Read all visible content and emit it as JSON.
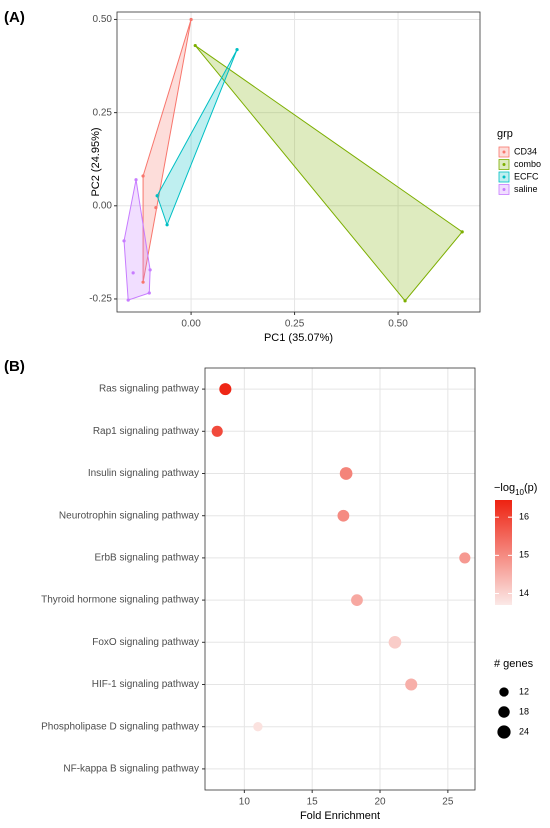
{
  "chart_data": [
    {
      "type": "scatter",
      "panel_label": "(A)",
      "xlabel": "PC1 (35.07%)",
      "ylabel": "PC2 (24.95%)",
      "xlim": [
        -0.179,
        0.698
      ],
      "ylim": [
        -0.285,
        0.52
      ],
      "xticks": [
        {
          "value": 0,
          "label": "0.00"
        },
        0.25,
        {
          "value": 0.5,
          "label": "0.50"
        }
      ],
      "yticks": [
        -0.25,
        {
          "value": 0,
          "label": "0.00"
        },
        0.25,
        {
          "value": 0.5,
          "label": "0.50"
        }
      ],
      "grid": true,
      "legend_title": "grp",
      "legend": "right",
      "series": [
        {
          "name": "CD34",
          "color": "#F8766D",
          "x": [
            0.0,
            -0.116,
            -0.116,
            -0.085
          ],
          "y": [
            0.5,
            0.08,
            -0.205,
            -0.005
          ]
        },
        {
          "name": "combo",
          "color": "#7CAE00",
          "x": [
            0.01,
            0.655,
            0.517
          ],
          "y": [
            0.43,
            -0.07,
            -0.255
          ]
        },
        {
          "name": "ECFC",
          "color": "#00BFC4",
          "x": [
            0.111,
            -0.058,
            -0.082
          ],
          "y": [
            0.419,
            -0.051,
            0.027
          ]
        },
        {
          "name": "saline",
          "color": "#C77CFF",
          "x": [
            -0.133,
            -0.162,
            -0.152,
            -0.101,
            -0.099,
            -0.14
          ],
          "y": [
            0.07,
            -0.094,
            -0.253,
            -0.234,
            -0.172,
            -0.18
          ]
        }
      ]
    },
    {
      "type": "dot",
      "panel_label": "(B)",
      "categories": [
        "Ras signaling pathway",
        "Rap1 signaling pathway",
        "Insulin signaling pathway",
        "Neurotrophin signaling pathway",
        "ErbB signaling pathway",
        "Thyroid hormone signaling pathway",
        "FoxO signaling pathway",
        "HIF-1 signaling pathway",
        "Phospholipase D signaling pathway",
        "NF-kappa B signaling pathway"
      ],
      "values": [
        8.6,
        8.0,
        17.5,
        17.3,
        26.25,
        18.3,
        21.1,
        22.3,
        11.0,
        null
      ],
      "color_values": [
        16.4,
        15.9,
        15.1,
        15.0,
        14.8,
        14.6,
        14.1,
        14.5,
        13.8,
        null
      ],
      "size_values": [
        20,
        17,
        22,
        19,
        17,
        19,
        22,
        20,
        12,
        null
      ],
      "xlabel": "Fold Enrichment",
      "xlim": [
        7.1,
        27.0
      ],
      "xticks": [
        10,
        15,
        20,
        25
      ],
      "grid": true,
      "color_label": [
        "−log",
        "10",
        "(p)"
      ],
      "clim": [
        13.7,
        16.45
      ],
      "color_ticks": [
        14,
        15,
        16
      ],
      "color_low": "#fbe9e7",
      "color_high": "#ee2211",
      "size_label": "# genes",
      "size_ticks": [
        12,
        18,
        24
      ]
    }
  ]
}
